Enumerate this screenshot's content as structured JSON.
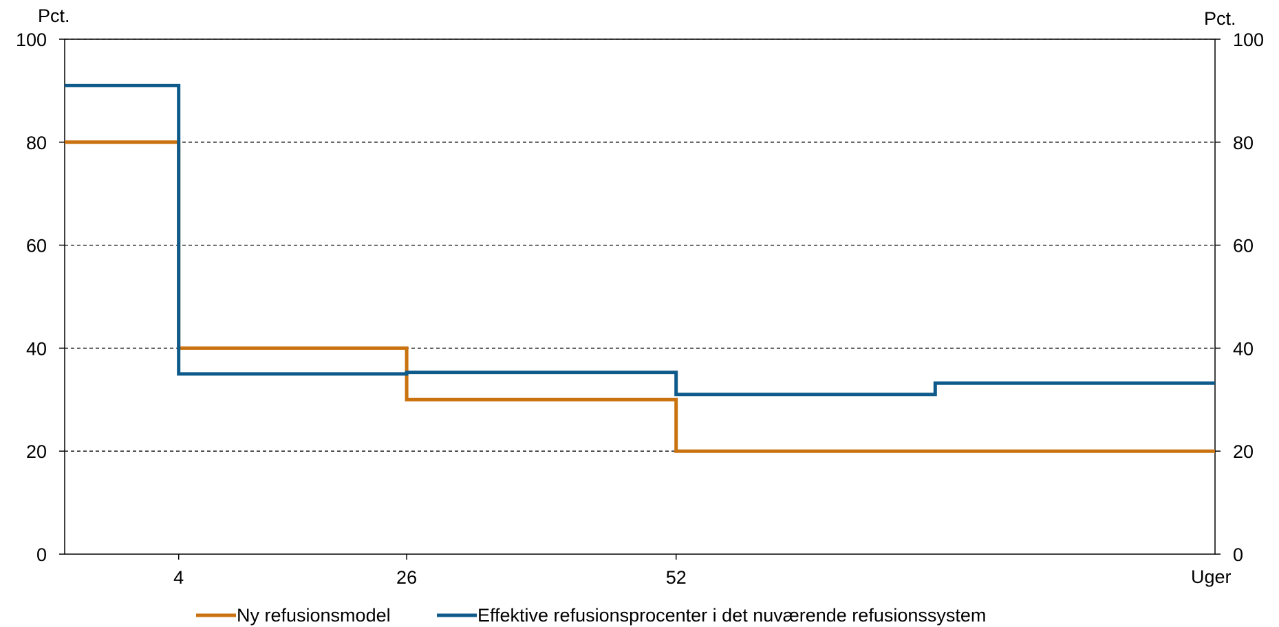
{
  "chart_data": {
    "type": "line",
    "step": true,
    "title": "",
    "left_unit": "Pct.",
    "right_unit": "Pct.",
    "xlabel": "Uger",
    "ylabel": "",
    "xlim": [
      -7,
      104
    ],
    "ylim": [
      0,
      100
    ],
    "y_ticks": [
      0,
      20,
      40,
      60,
      80,
      100
    ],
    "x_ticks": [
      4,
      26,
      52
    ],
    "grid": "horizontal dashed",
    "legend_position": "bottom",
    "series": [
      {
        "name": "Ny refusionsmodel",
        "color": "#c9720f",
        "points": [
          [
            -7,
            80
          ],
          [
            4,
            80
          ],
          [
            4,
            40
          ],
          [
            26,
            40
          ],
          [
            26,
            30
          ],
          [
            52,
            30
          ],
          [
            52,
            20
          ],
          [
            104,
            20
          ]
        ]
      },
      {
        "name": "Effektive refusionsprocenter i det nuværende refusionssystem",
        "color": "#0e5a8a",
        "points": [
          [
            -7,
            91
          ],
          [
            4,
            91
          ],
          [
            4,
            35
          ],
          [
            26,
            35
          ],
          [
            26,
            35.3
          ],
          [
            52,
            35.3
          ],
          [
            52,
            31
          ],
          [
            77,
            31
          ],
          [
            77,
            33.2
          ],
          [
            104,
            33.2
          ]
        ]
      }
    ]
  }
}
